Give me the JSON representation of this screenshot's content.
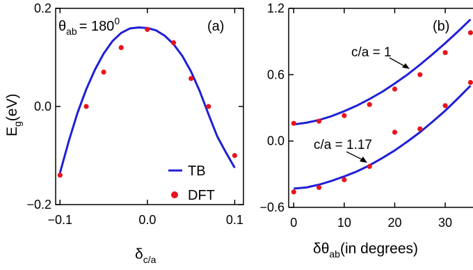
{
  "chart_data": [
    {
      "panel": "a",
      "type": "line+scatter",
      "panel_label": "(a)",
      "annotation": {
        "base": "θ",
        "sub": "ab",
        "text": "= 180",
        "sup": "0"
      },
      "xlabel": {
        "base": "δ",
        "sub": "c/a"
      },
      "ylabel": {
        "base": "E",
        "sub": "g",
        "rest": "(eV)"
      },
      "xlim": [
        -0.105,
        0.11
      ],
      "ylim": [
        -0.2,
        0.2
      ],
      "xticks": [
        -0.1,
        0.0,
        0.1
      ],
      "xtick_labels": [
        "−0.1",
        "0.0",
        "0.1"
      ],
      "yticks": [
        -0.2,
        0.0,
        0.2
      ],
      "ytick_labels": [
        "−0.2",
        "0.0",
        "0.2"
      ],
      "series": [
        {
          "name": "TB",
          "kind": "line",
          "color": "#1f1fd8",
          "x": [
            -0.1,
            -0.09,
            -0.08,
            -0.07,
            -0.06,
            -0.05,
            -0.04,
            -0.03,
            -0.02,
            -0.01,
            0.0,
            0.01,
            0.02,
            0.03,
            0.04,
            0.05,
            0.06,
            0.07,
            0.08,
            0.09,
            0.1
          ],
          "y": [
            -0.135,
            -0.071,
            -0.013,
            0.035,
            0.075,
            0.108,
            0.133,
            0.15,
            0.159,
            0.161,
            0.16,
            0.155,
            0.144,
            0.127,
            0.103,
            0.071,
            0.031,
            -0.016,
            -0.061,
            -0.094,
            -0.125
          ]
        },
        {
          "name": "DFT",
          "kind": "scatter",
          "color": "#e8141c",
          "x": [
            -0.1,
            -0.07,
            -0.05,
            -0.03,
            0.0,
            0.03,
            0.05,
            0.07,
            0.1
          ],
          "y": [
            -0.14,
            0.0,
            0.07,
            0.12,
            0.157,
            0.13,
            0.057,
            0.0,
            -0.1
          ]
        }
      ],
      "legend": [
        {
          "label": "TB"
        },
        {
          "label": "DFT"
        }
      ]
    },
    {
      "panel": "b",
      "type": "line+scatter",
      "panel_label": "(b)",
      "xlabel": {
        "base": "δθ",
        "sub": "ab",
        "rest": "(in degrees)"
      },
      "xlim": [
        -1,
        35.5
      ],
      "ylim": [
        -0.6,
        1.2
      ],
      "xticks": [
        0,
        10,
        20,
        30
      ],
      "xtick_labels": [
        "0",
        "10",
        "20",
        "30"
      ],
      "yticks": [
        -0.6,
        0.0,
        0.6,
        1.2
      ],
      "ytick_labels": [
        "−0.6",
        "0.0",
        "0.6",
        "1.2"
      ],
      "series": [
        {
          "name": "c/a = 1",
          "kind": "line",
          "color": "#1f1fd8",
          "x": [
            0,
            2.5,
            5,
            7.5,
            10,
            12.5,
            15,
            17.5,
            20,
            22.5,
            25,
            27.5,
            30,
            32.5,
            35
          ],
          "y": [
            0.15,
            0.165,
            0.19,
            0.225,
            0.27,
            0.32,
            0.38,
            0.445,
            0.52,
            0.6,
            0.69,
            0.785,
            0.885,
            0.99,
            1.1
          ]
        },
        {
          "name": "c/a = 1",
          "kind": "scatter",
          "color": "#e8141c",
          "x": [
            0,
            5,
            10,
            15,
            20,
            25,
            30,
            35
          ],
          "y": [
            0.16,
            0.18,
            0.23,
            0.33,
            0.47,
            0.6,
            0.8,
            0.98
          ]
        },
        {
          "name": "c/a = 1.17",
          "kind": "line",
          "color": "#1f1fd8",
          "x": [
            0,
            2.5,
            5,
            7.5,
            10,
            12.5,
            15,
            17.5,
            20,
            22.5,
            25,
            27.5,
            30,
            32.5,
            35
          ],
          "y": [
            -0.43,
            -0.42,
            -0.395,
            -0.36,
            -0.32,
            -0.275,
            -0.22,
            -0.155,
            -0.085,
            -0.005,
            0.08,
            0.175,
            0.275,
            0.385,
            0.5
          ]
        },
        {
          "name": "c/a = 1.17",
          "kind": "scatter",
          "color": "#e8141c",
          "x": [
            0,
            5,
            10,
            15,
            20,
            25,
            30,
            35
          ],
          "y": [
            -0.46,
            -0.42,
            -0.35,
            -0.23,
            0.08,
            0.11,
            0.32,
            0.53
          ]
        }
      ],
      "annotations": [
        {
          "text": "c/a = 1"
        },
        {
          "text": "c/a = 1.17"
        }
      ]
    }
  ]
}
